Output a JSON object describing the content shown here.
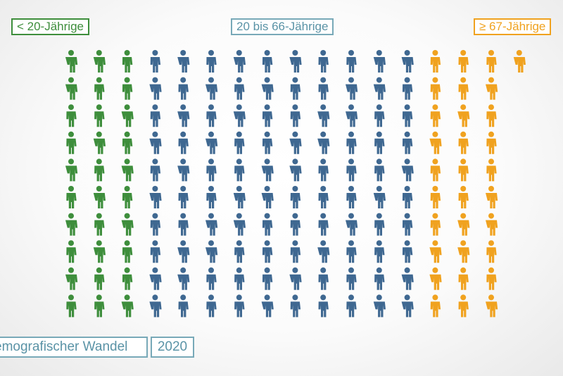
{
  "legend": {
    "young": "< 20-Jährige",
    "middle": "20 bis 66-Jährige",
    "old": "≥ 67-Jährige"
  },
  "caption": {
    "title": "emografischer Wandel",
    "year": "2020"
  },
  "colors": {
    "young": "#3e8e3c",
    "middle": "#3f6891",
    "old": "#f0a21f"
  },
  "chart_data": {
    "type": "pictograph",
    "unit": "person-icon",
    "categories": [
      "< 20-Jährige",
      "20 bis 66-Jährige",
      "≥ 67-Jährige"
    ],
    "values": [
      30,
      100,
      31
    ]
  },
  "icons": {
    "person": "person-icon"
  }
}
